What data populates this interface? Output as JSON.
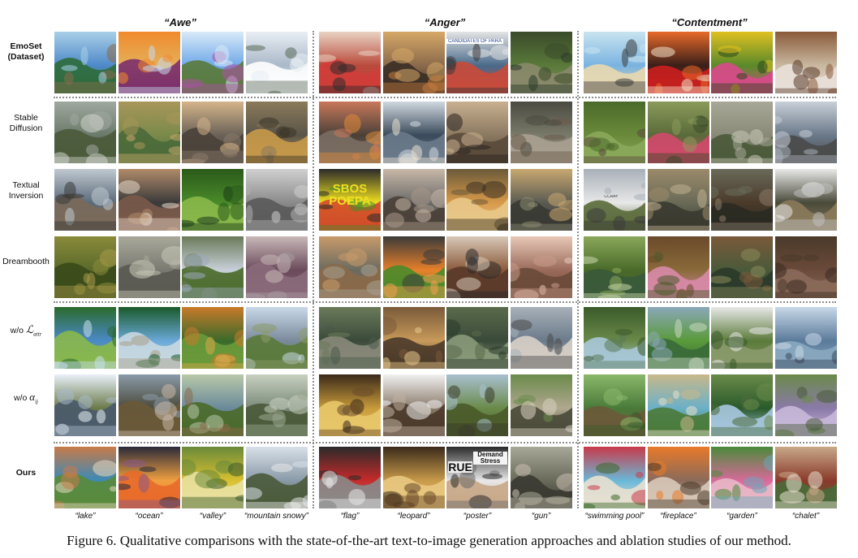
{
  "figure": {
    "columns": [
      "“Awe”",
      "“Anger”",
      "“Contentment”"
    ],
    "rows": [
      {
        "label": "EmoSet\n(Dataset)",
        "bold": true
      },
      {
        "label": "Stable\nDiffusion",
        "bold": false
      },
      {
        "label": "Textual\nInversion",
        "bold": false
      },
      {
        "label": "Dreambooth",
        "bold": false
      },
      {
        "label": "w/o ℒattr",
        "bold": false
      },
      {
        "label": "w/o αij",
        "bold": false
      },
      {
        "label": "Ours",
        "bold": true
      }
    ],
    "captions": [
      "“lake”",
      "“ocean”",
      "“valley”",
      "“mountain snowy”",
      "“flag”",
      "“leopard”",
      "“poster”",
      "“gun”",
      "“swimming pool”",
      "“fireplace”",
      "“garden”",
      "“chalet”"
    ],
    "image_text": {
      "protest_sign": "CANDIDATES OF PARA",
      "ti_graffiti": "SBOS POEPA",
      "car_brand": "CCRAY",
      "ours_poster_text": "RUE",
      "ours_poster_sign": "Demand Stress"
    },
    "caption": "Figure 6. Qualitative comparisons with the state-of-the-art text-to-image generation approaches and ablation studies of our method.",
    "tile_palettes": [
      [
        "#4f89c9",
        "#a8cfe8",
        "#2e6b3a",
        "#8a6a4b",
        "#e4b05a",
        "#f08a2c",
        "#7b2f6b",
        "#c7d8ee",
        "#6fa8e8",
        "#d8eaf8",
        "#5a7a3b",
        "#b04fa8",
        "#aab8c8",
        "#e8eef4",
        "#ffffff",
        "#5a6a5a",
        "#b94a3c",
        "#e9d2c2",
        "#cf3d3a",
        "#2b2b2b",
        "#8a6a4a",
        "#d6a867",
        "#3b2f26",
        "#c47b3e",
        "#4a6a8a",
        "#e4e4e4",
        "#c94a3a",
        "#3a3a3a",
        "#5a7a3a",
        "#3a4a2a",
        "#8a8a6a",
        "#2a3a2a",
        "#7ab3e0",
        "#c8e4f0",
        "#e8d8b0",
        "#3b3b3b",
        "#3a1f1a",
        "#e86a2a",
        "#c91f1f",
        "#f2e2c8",
        "#5a8a2a",
        "#e0c020",
        "#d84a8a",
        "#2a4a1a",
        "#c9b8a0",
        "#8a5a3a",
        "#e8e0d8",
        "#5a3a2a"
      ],
      [
        "#6a7a6a",
        "#a0a8a0",
        "#4a5a3a",
        "#d0d4cc",
        "#7a8a4a",
        "#a8965a",
        "#4a6a3a",
        "#c9a86a",
        "#6a6258",
        "#d4b48a",
        "#4a423a",
        "#8a7a6a",
        "#5a5448",
        "#8a7a5a",
        "#c89a4a",
        "#3a3428",
        "#4a4038",
        "#c8785a",
        "#7a6e62",
        "#e08a3a",
        "#3a4a5a",
        "#d0d8e0",
        "#6a7a8a",
        "#e8e0d0",
        "#8a7860",
        "#c8b090",
        "#5a4a3a",
        "#2a2420",
        "#7a7a6a",
        "#4a4a40",
        "#a8a090",
        "#6a5a4a",
        "#6a8a3a",
        "#4a6a2a",
        "#8aa85a",
        "#5a4a3a",
        "#5a6a3a",
        "#8a9a5a",
        "#d04a6a",
        "#3a4a2a",
        "#8a8a78",
        "#a8a898",
        "#4a5a3a",
        "#c8c8b8",
        "#6a7888",
        "#c8d0d8",
        "#4a4a4a",
        "#a8b0b8"
      ],
      [
        "#5a6a7a",
        "#c0c8d0",
        "#7a6a5a",
        "#3a3a3a",
        "#3a3a3a",
        "#b08a6a",
        "#7a5a4a",
        "#e8d8c8",
        "#4a8a2a",
        "#2a5a1a",
        "#8ab84a",
        "#1a3a1a",
        "#8a8a8a",
        "#d0d0d0",
        "#5a5a5a",
        "#b0b0b0",
        "#f0e020",
        "#2a2a2a",
        "#d04a2a",
        "#4a8a2a",
        "#6a6a68",
        "#c8b8a8",
        "#4a4038",
        "#a89888",
        "#d89a4a",
        "#6a5a3a",
        "#e8c88a",
        "#3a3020",
        "#5a5a52",
        "#c8a870",
        "#3a3a34",
        "#8a8a70",
        "#e8e8e8",
        "#a8b0b8",
        "#5a6a3a",
        "#3a3a3a",
        "#6a6a58",
        "#9a8a6a",
        "#3a3a30",
        "#c0b090",
        "#4a3a2a",
        "#6a6a5a",
        "#2a2a22",
        "#8a7a6a",
        "#4a4a3a",
        "#e8e8e8",
        "#8a7a5a",
        "#c0c0c0"
      ],
      [
        "#5a6a2a",
        "#8a8a3a",
        "#3a4a1a",
        "#a89a4a",
        "#7a7a72",
        "#a8a89a",
        "#5a5a52",
        "#c8c8b8",
        "#c8d0d8",
        "#6a7a5a",
        "#4a6a2a",
        "#9aa8b8",
        "#6a4a5a",
        "#c8b8b8",
        "#8a6a7a",
        "#a89aa0",
        "#6a6a60",
        "#c89a6a",
        "#8a6a4a",
        "#a8a090",
        "#e8802a",
        "#3a3a3a",
        "#4a8a2a",
        "#f0a050",
        "#8a5a3a",
        "#d8c8b8",
        "#5a3a2a",
        "#2a2a2a",
        "#9a6a5a",
        "#e8c8b8",
        "#6a4a3a",
        "#c89a8a",
        "#4a6a2a",
        "#8aa85a",
        "#3a5a3a",
        "#c8d8a8",
        "#8a6a3a",
        "#6a4a2a",
        "#d88aa8",
        "#4a5a2a",
        "#4a5a3a",
        "#7a5a3a",
        "#2a3a2a",
        "#8a8a5a",
        "#6a4a3a",
        "#4a3a2a",
        "#8a6a5a",
        "#3a2a20"
      ],
      [
        "#4a8ac8",
        "#2a6a2a",
        "#8ab84a",
        "#c8e0f0",
        "#6aa8d8",
        "#1a5a2a",
        "#c8d8e0",
        "#a8a08a",
        "#3a6a2a",
        "#c87a2a",
        "#6a9a3a",
        "#d8a84a",
        "#7a8a9a",
        "#c8d8e8",
        "#5a7a3a",
        "#8a9a6a",
        "#3a4a3a",
        "#6a7a5a",
        "#8a8a7a",
        "#4a5a4a",
        "#c89a5a",
        "#7a5a3a",
        "#4a3a2a",
        "#e8c88a",
        "#3a4a3a",
        "#5a6a4a",
        "#8a9a7a",
        "#2a3a2a",
        "#6a7a8a",
        "#a8b0b8",
        "#d8d0c8",
        "#4a4a4a",
        "#6a8a4a",
        "#3a5a2a",
        "#a8c8d8",
        "#5a7a5a",
        "#5a9a3a",
        "#8aa8b8",
        "#3a6a3a",
        "#c8d8c0",
        "#5a7a3a",
        "#e8e8e8",
        "#8a9a6a",
        "#3a5a2a",
        "#5a7a9a",
        "#c8d8e8",
        "#8aa8c0",
        "#3a4a5a"
      ],
      [
        "#6a7a4a",
        "#e8f0f8",
        "#4a5a6a",
        "#a8b8c8",
        "#4a4a3a",
        "#8a9aa8",
        "#6a5a3a",
        "#c8b8a8",
        "#6a8a9a",
        "#b8c8a8",
        "#4a6a2a",
        "#8a6a4a",
        "#7a8a7a",
        "#c8d0c0",
        "#4a5a3a",
        "#9aa890",
        "#c89a3a",
        "#3a2a1a",
        "#e8c86a",
        "#6a4a2a",
        "#8a7a6a",
        "#f0f0f0",
        "#4a3a2a",
        "#c0b0a0",
        "#6a8a4a",
        "#a8c0d0",
        "#4a5a2a",
        "#3a3a2a",
        "#b0a890",
        "#6a8a4a",
        "#4a4a3a",
        "#d8d0c0",
        "#4a7a3a",
        "#8ab86a",
        "#6a5a3a",
        "#3a5a2a",
        "#6ab0c8",
        "#c8b88a",
        "#4a7a3a",
        "#e8e0c8",
        "#2a5a2a",
        "#6a8a4a",
        "#a8c8e0",
        "#4a6a3a",
        "#8a7aa8",
        "#6a8a4a",
        "#c8b8d8",
        "#4a5a3a"
      ],
      [
        "#3a8ab8",
        "#c87a4a",
        "#5a8a3a",
        "#e8d8c0",
        "#f0a040",
        "#2a2a3a",
        "#e86a2a",
        "#8a5a8a",
        "#d8c030",
        "#6a8a3a",
        "#e8e0a0",
        "#3a5a2a",
        "#8a9aa8",
        "#d8e0e8",
        "#4a5a3a",
        "#e8e8e8",
        "#c82a2a",
        "#2a2a2a",
        "#8a8a8a",
        "#e8e8e8",
        "#c89a4a",
        "#3a2a1a",
        "#e8c880",
        "#6a4a2a",
        "#e8e8e8",
        "#2a2a2a",
        "#c8a888",
        "#6a6a6a",
        "#6a6a5a",
        "#a8a898",
        "#3a3a32",
        "#c8c0b0",
        "#6ab8d8",
        "#c83a4a",
        "#e8e0d0",
        "#3a6a2a",
        "#8a6a5a",
        "#e87a2a",
        "#d8c8b8",
        "#4a3a2a",
        "#d86a9a",
        "#4a8a3a",
        "#e8b8c8",
        "#6aa8b8",
        "#8a3a2a",
        "#c8a888",
        "#4a6a3a",
        "#e8e0d0"
      ]
    ]
  }
}
